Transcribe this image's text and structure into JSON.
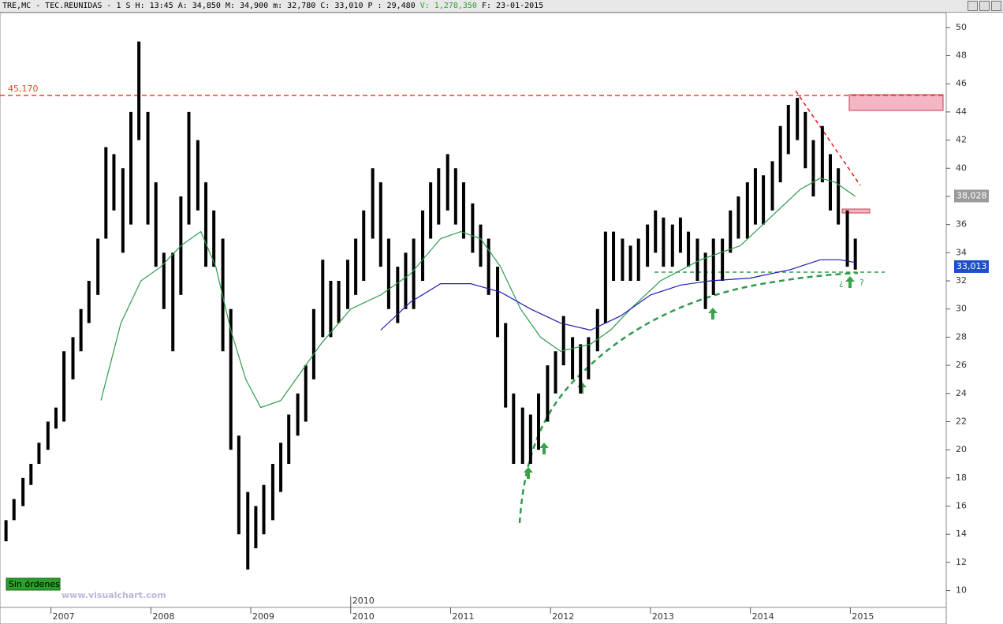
{
  "header": {
    "symbol": "TRE,MC - TEC.REUNIDAS -",
    "period": "1 S",
    "fields": [
      "H: 13:45",
      "A: 34,850",
      "M: 34,900",
      "m: 32,780",
      "C: 33,010",
      "P : 29,480",
      "V: 1,278,350",
      "F: 23-01-2015"
    ]
  },
  "chart_data": {
    "type": "ohlc",
    "x": [
      2006.55,
      2006.63,
      2006.72,
      2006.8,
      2006.88,
      2006.97,
      2007.05,
      2007.13,
      2007.22,
      2007.3,
      2007.38,
      2007.47,
      2007.55,
      2007.63,
      2007.72,
      2007.8,
      2007.88,
      2007.97,
      2008.05,
      2008.13,
      2008.22,
      2008.3,
      2008.38,
      2008.47,
      2008.55,
      2008.63,
      2008.72,
      2008.8,
      2008.88,
      2008.97,
      2009.05,
      2009.13,
      2009.22,
      2009.3,
      2009.38,
      2009.47,
      2009.55,
      2009.63,
      2009.72,
      2009.8,
      2009.88,
      2009.97,
      2010.05,
      2010.13,
      2010.22,
      2010.3,
      2010.38,
      2010.47,
      2010.55,
      2010.63,
      2010.72,
      2010.8,
      2010.88,
      2010.97,
      2011.05,
      2011.13,
      2011.22,
      2011.3,
      2011.38,
      2011.47,
      2011.55,
      2011.63,
      2011.72,
      2011.8,
      2011.88,
      2011.97,
      2012.05,
      2012.13,
      2012.22,
      2012.3,
      2012.38,
      2012.47,
      2012.55,
      2012.63,
      2012.72,
      2012.8,
      2012.88,
      2012.97,
      2013.05,
      2013.13,
      2013.22,
      2013.3,
      2013.38,
      2013.47,
      2013.55,
      2013.63,
      2013.72,
      2013.8,
      2013.88,
      2013.97,
      2014.05,
      2014.13,
      2014.22,
      2014.3,
      2014.38,
      2014.47,
      2014.55,
      2014.63,
      2014.72,
      2014.8,
      2014.88,
      2014.97,
      2015.05
    ],
    "high": [
      15,
      16.5,
      18,
      19,
      20.5,
      22,
      23,
      27,
      28,
      30,
      32,
      35,
      41.5,
      41,
      40,
      44,
      49,
      44,
      39,
      34,
      34,
      38,
      44,
      42,
      39,
      37,
      35,
      30,
      21,
      17,
      16,
      17.5,
      19,
      20.5,
      22.5,
      24,
      26,
      30,
      33.5,
      32,
      32,
      33.5,
      35,
      37,
      40,
      39,
      35,
      33,
      34,
      35,
      37,
      39,
      40,
      41,
      40,
      39,
      37.5,
      36,
      35,
      33,
      29,
      24,
      23,
      22.5,
      24,
      26,
      27,
      29.5,
      28,
      27.5,
      28,
      30,
      35.5,
      35.5,
      35,
      34.5,
      35,
      36,
      37,
      36.5,
      36,
      36.5,
      35.5,
      35,
      34,
      35,
      35,
      37,
      38,
      39,
      40,
      39.5,
      40.5,
      43,
      44.5,
      45,
      44,
      42,
      43,
      41,
      40,
      37,
      35
    ],
    "low": [
      13.5,
      15,
      16,
      17.5,
      19,
      20,
      21.5,
      22,
      25,
      27,
      29,
      31,
      35,
      37,
      34,
      36,
      42,
      36,
      33,
      30,
      27,
      31,
      36,
      37,
      33,
      33,
      27,
      20,
      14,
      11.5,
      13,
      14,
      15,
      17,
      19,
      21,
      22,
      25,
      28,
      28,
      29,
      30,
      31,
      32,
      35,
      33,
      30,
      29,
      30,
      30,
      32,
      35,
      36,
      37,
      36,
      35,
      34,
      33,
      31,
      28,
      23,
      19,
      19,
      19,
      20,
      22,
      24,
      26,
      25,
      24,
      25,
      27,
      29,
      32,
      32,
      32,
      32,
      33,
      34,
      33,
      33,
      34,
      33,
      32,
      30,
      31,
      32,
      34,
      35,
      35,
      36,
      36,
      37,
      39,
      41,
      42,
      40,
      38,
      39,
      37,
      36,
      33,
      32.8
    ],
    "color": "#000000",
    "overlays": [
      {
        "color": "#2e9b4e",
        "x": [
          2007.5,
          2007.7,
          2007.9,
          2008.1,
          2008.3,
          2008.5,
          2008.65,
          2008.8,
          2008.95,
          2009.1,
          2009.3,
          2009.5,
          2009.7,
          2010.0,
          2010.3,
          2010.6,
          2010.9,
          2011.1,
          2011.3,
          2011.5,
          2011.7,
          2011.9,
          2012.1,
          2012.4,
          2012.6,
          2012.8,
          2013.1,
          2013.5,
          2013.9,
          2014.2,
          2014.5,
          2014.7,
          2014.85,
          2015.05
        ],
        "values": [
          23.5,
          29,
          32,
          33,
          34.5,
          35.5,
          33,
          28.5,
          25,
          23,
          23.5,
          25.5,
          27.5,
          30,
          31,
          32.5,
          35,
          35.5,
          35,
          33,
          30,
          28,
          27,
          27.5,
          28.5,
          30,
          32,
          33.5,
          34.5,
          36.5,
          38.5,
          39.3,
          39,
          38
        ]
      },
      {
        "color": "#1c1cb4",
        "x": [
          2010.3,
          2010.6,
          2010.9,
          2011.2,
          2011.5,
          2011.8,
          2012.1,
          2012.4,
          2012.7,
          2013.0,
          2013.3,
          2013.6,
          2014.0,
          2014.4,
          2014.7,
          2014.9,
          2015.05
        ],
        "values": [
          28.5,
          30.5,
          31.8,
          31.8,
          31.2,
          30,
          29,
          28.5,
          29.5,
          31,
          31.7,
          32,
          32.2,
          32.8,
          33.5,
          33.5,
          33.3
        ]
      }
    ],
    "level": {
      "value": 45.17,
      "label": "45,170",
      "color": "#e8431c"
    },
    "price_labels": [
      {
        "value": 38.028,
        "label": "38,028",
        "color": "#9a9a9a"
      },
      {
        "value": 33.013,
        "label": "33,013",
        "color": "#1e4fc8"
      }
    ],
    "xlim": [
      2006.49,
      2015.96
    ],
    "xticks": [
      2007,
      2008,
      2009,
      2010,
      2011,
      2012,
      2013,
      2014,
      2015
    ],
    "ylim": [
      8.8,
      51
    ],
    "yticks": [
      10,
      12,
      14,
      16,
      18,
      20,
      22,
      24,
      26,
      28,
      30,
      32,
      34,
      36,
      38,
      40,
      42,
      44,
      46,
      48,
      50
    ],
    "marker_label": "2010",
    "question_marks": [
      "¿",
      "?"
    ]
  },
  "badges": {
    "orders": "Sin órdenes",
    "site": "www.visualchart.com"
  }
}
